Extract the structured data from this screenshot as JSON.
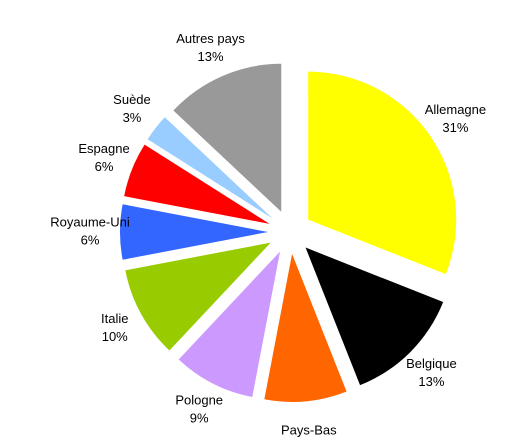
{
  "chart_data": {
    "type": "pie",
    "categories": [
      "Allemagne",
      "Belgique",
      "Pays-Bas",
      "Pologne",
      "Italie",
      "Royaume-Uni",
      "Espagne",
      "Suède",
      "Autres pays"
    ],
    "values": [
      31,
      13,
      9,
      9,
      10,
      6,
      6,
      3,
      13
    ],
    "value_labels": [
      "31%",
      "13%",
      null,
      "9%",
      "10%",
      "6%",
      "6%",
      "3%",
      "13%"
    ],
    "colors": [
      "#ffff00",
      "#000000",
      "#ff6600",
      "#cc99ff",
      "#99cc00",
      "#3366ff",
      "#ff0000",
      "#99ccff",
      "#999999"
    ]
  }
}
